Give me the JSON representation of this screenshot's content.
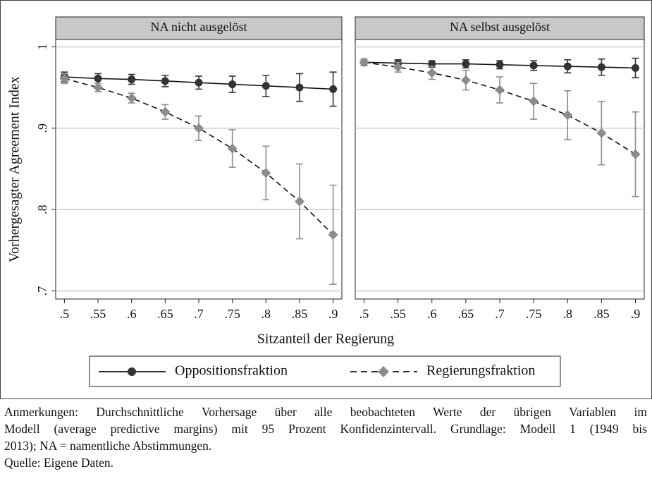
{
  "ylabel": "Vorhergesagter Agreement Index",
  "xlabel": "Sitzanteil der Regierung",
  "notes": [
    "Anmerkungen: Durchschnittliche Vorhersage über alle beobachteten Werte der übrigen Variablen im",
    "Modell (average predictive margins) mit 95 Prozent Konfidenzintervall. Grundlage: Modell 1 (1949 bis",
    "2013); NA = namentliche Abstimmungen."
  ],
  "source": "Quelle: Eigene Daten.",
  "chart_data": [
    {
      "type": "line",
      "title": "NA nicht ausgelöst",
      "x": [
        0.5,
        0.55,
        0.6,
        0.65,
        0.7,
        0.75,
        0.8,
        0.85,
        0.9
      ],
      "series": [
        {
          "name": "Oppositionsfraktion",
          "color": "#333333",
          "marker": "circle",
          "dash": false,
          "values": [
            0.963,
            0.961,
            0.96,
            0.958,
            0.956,
            0.954,
            0.952,
            0.95,
            0.948
          ],
          "errors": [
            0.006,
            0.006,
            0.006,
            0.007,
            0.008,
            0.01,
            0.013,
            0.017,
            0.021
          ]
        },
        {
          "name": "Regierungsfraktion",
          "color": "#8c8c8c",
          "marker": "diamond",
          "dash": true,
          "values": [
            0.961,
            0.95,
            0.937,
            0.92,
            0.9,
            0.875,
            0.845,
            0.81,
            0.769
          ],
          "errors": [
            0.006,
            0.005,
            0.006,
            0.009,
            0.015,
            0.023,
            0.033,
            0.046,
            0.061
          ]
        }
      ],
      "xlim": [
        0.487,
        0.913
      ],
      "ylim": [
        0.69,
        1.009
      ],
      "xticks": [
        {
          "value": 0.5,
          "label": ".5"
        },
        {
          "value": 0.55,
          "label": ".55"
        },
        {
          "value": 0.6,
          "label": ".6"
        },
        {
          "value": 0.65,
          "label": ".65"
        },
        {
          "value": 0.7,
          "label": ".7"
        },
        {
          "value": 0.75,
          "label": ".75"
        },
        {
          "value": 0.8,
          "label": ".8"
        },
        {
          "value": 0.85,
          "label": ".85"
        },
        {
          "value": 0.9,
          "label": ".9"
        }
      ],
      "yticks": [
        {
          "value": 0.7,
          "label": ".7"
        },
        {
          "value": 0.8,
          "label": ".8"
        },
        {
          "value": 0.9,
          "label": ".9"
        },
        1
      ],
      "grid": true
    },
    {
      "type": "line",
      "title": "NA selbst ausgelöst",
      "x": [
        0.5,
        0.55,
        0.6,
        0.65,
        0.7,
        0.75,
        0.8,
        0.85,
        0.9
      ],
      "series": [
        {
          "name": "Oppositionsfraktion",
          "color": "#333333",
          "marker": "circle",
          "dash": false,
          "values": [
            0.981,
            0.98,
            0.979,
            0.979,
            0.978,
            0.977,
            0.976,
            0.975,
            0.974
          ],
          "errors": [
            0.004,
            0.004,
            0.004,
            0.005,
            0.005,
            0.006,
            0.008,
            0.01,
            0.012
          ]
        },
        {
          "name": "Regierungsfraktion",
          "color": "#8c8c8c",
          "marker": "diamond",
          "dash": true,
          "values": [
            0.981,
            0.975,
            0.968,
            0.959,
            0.947,
            0.933,
            0.916,
            0.894,
            0.868
          ],
          "errors": [
            0.004,
            0.006,
            0.008,
            0.012,
            0.016,
            0.022,
            0.03,
            0.039,
            0.052
          ]
        }
      ],
      "xlim": [
        0.487,
        0.913
      ],
      "ylim": [
        0.69,
        1.009
      ],
      "xticks": [
        {
          "value": 0.5,
          "label": ".5"
        },
        {
          "value": 0.55,
          "label": ".55"
        },
        {
          "value": 0.6,
          "label": ".6"
        },
        {
          "value": 0.65,
          "label": ".65"
        },
        {
          "value": 0.7,
          "label": ".7"
        },
        {
          "value": 0.75,
          "label": ".75"
        },
        {
          "value": 0.8,
          "label": ".8"
        },
        {
          "value": 0.85,
          "label": ".85"
        },
        {
          "value": 0.9,
          "label": ".9"
        }
      ],
      "yticks": [
        {
          "value": 0.7,
          "label": ".7"
        },
        {
          "value": 0.8,
          "label": ".8"
        },
        {
          "value": 0.9,
          "label": ".9"
        },
        1
      ],
      "grid": true
    }
  ]
}
